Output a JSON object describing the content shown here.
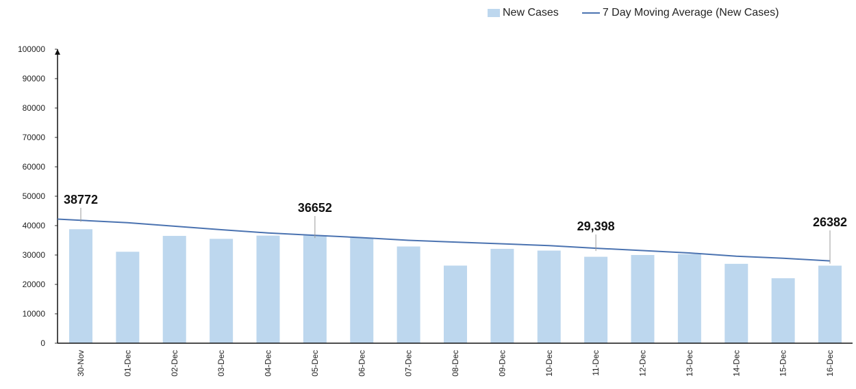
{
  "chart_data": {
    "type": "bar",
    "categories": [
      "30-Nov",
      "01-Dec",
      "02-Dec",
      "03-Dec",
      "04-Dec",
      "05-Dec",
      "06-Dec",
      "07-Dec",
      "08-Dec",
      "09-Dec",
      "10-Dec",
      "11-Dec",
      "12-Dec",
      "13-Dec",
      "14-Dec",
      "15-Dec",
      "16-Dec"
    ],
    "series": [
      {
        "name": "New Cases",
        "type": "bar",
        "color": "#bdd7ee",
        "values": [
          38772,
          31100,
          36500,
          35500,
          36600,
          36652,
          35900,
          32900,
          26400,
          32100,
          31500,
          29398,
          30000,
          30300,
          27000,
          22100,
          26382
        ]
      },
      {
        "name": "7 Day Moving Average (New Cases)",
        "type": "line",
        "color": "#4a72b0",
        "values": [
          42200,
          41000,
          39800,
          38600,
          37500,
          36700,
          35900,
          35000,
          34400,
          33800,
          33200,
          32300,
          31500,
          30700,
          29600,
          28900,
          28000
        ]
      }
    ],
    "data_labels": [
      {
        "index": 0,
        "text": "38772"
      },
      {
        "index": 5,
        "text": "36652"
      },
      {
        "index": 11,
        "text": "29,398"
      },
      {
        "index": 16,
        "text": "26382"
      }
    ],
    "ylim": [
      0,
      100000
    ],
    "yticks": [
      "0",
      "10000",
      "20000",
      "30000",
      "40000",
      "50000",
      "60000",
      "70000",
      "80000",
      "90000",
      "100000"
    ],
    "xlabel": "",
    "ylabel": "",
    "grid": false,
    "legend_position": "top-right"
  }
}
